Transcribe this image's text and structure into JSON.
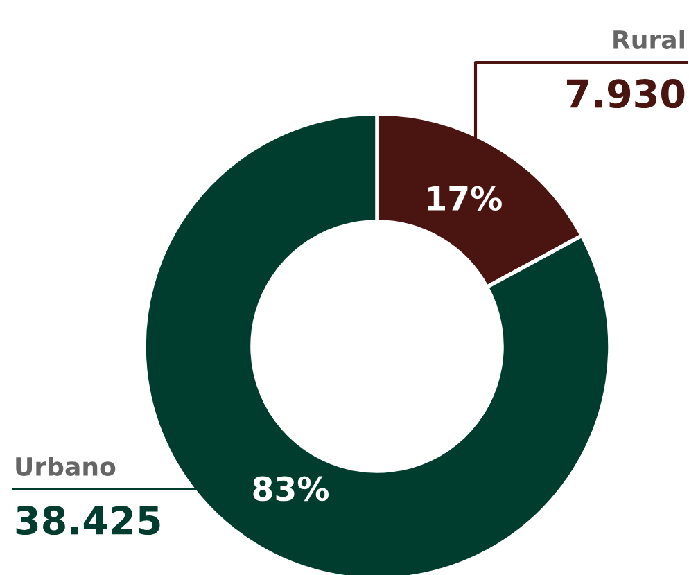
{
  "chart_data": {
    "type": "donut",
    "categories": [
      "Rural",
      "Urbano"
    ],
    "values": [
      7930,
      38425
    ],
    "colors": [
      "#4a1510",
      "#003d2e"
    ],
    "value_labels": [
      "7.930",
      "38.425"
    ],
    "annotations": [
      {
        "text": "17%",
        "x": "Rural"
      },
      {
        "text": "83%",
        "x": "Urbano"
      }
    ],
    "legend": false
  }
}
